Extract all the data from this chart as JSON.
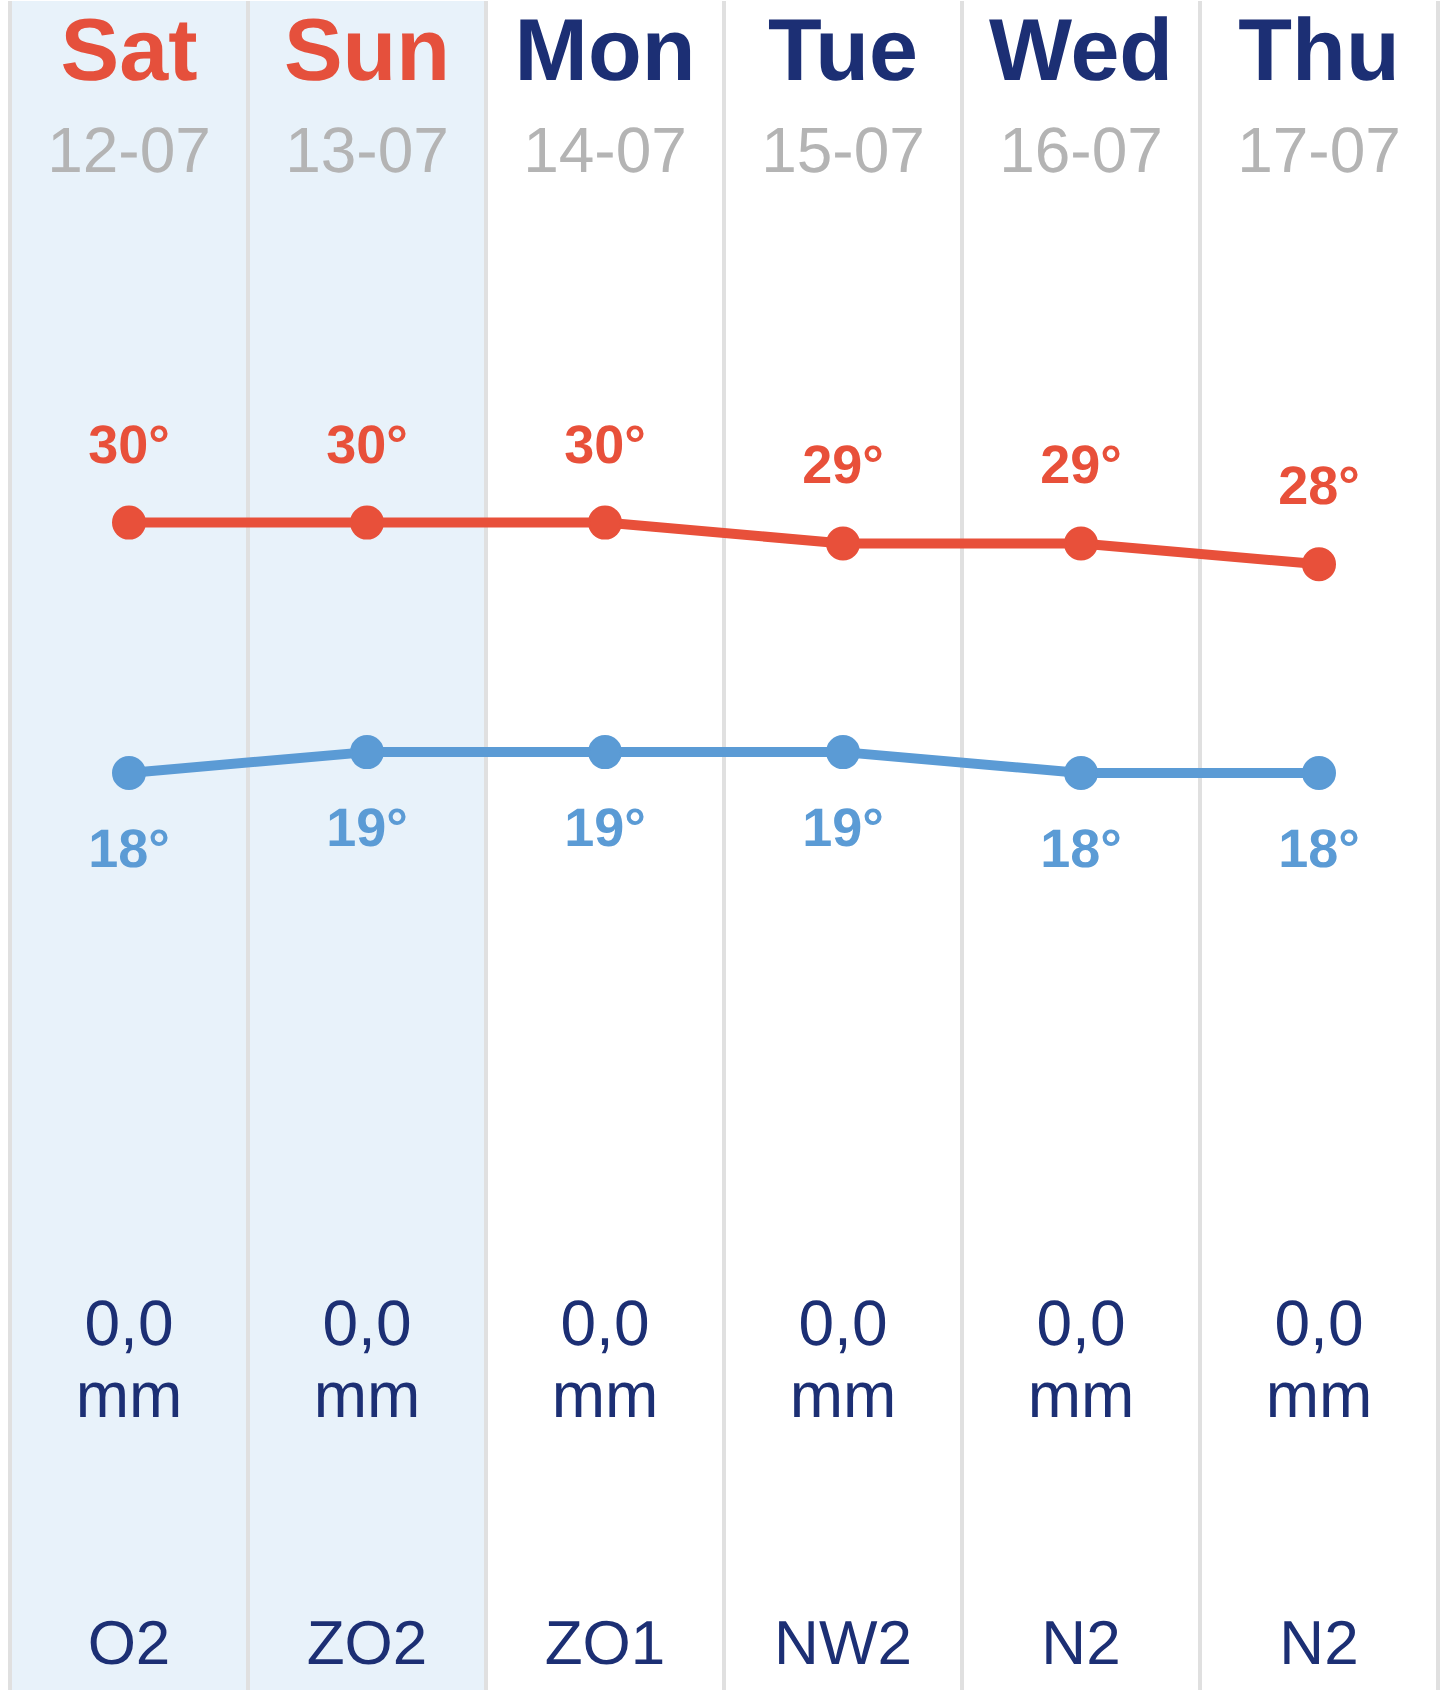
{
  "chart_data": {
    "type": "line",
    "categories": [
      "Sat\n12-07",
      "Sun\n13-07",
      "Mon\n14-07",
      "Tue\n15-07",
      "Wed\n16-07",
      "Thu\n17-07"
    ],
    "series": [
      {
        "color": "#e8503a",
        "values": [
          30,
          30,
          30,
          29,
          29,
          28
        ],
        "value_labels": [
          "30°",
          "30°",
          "30°",
          "29°",
          "29°",
          "28°"
        ]
      },
      {
        "color": "#5b9bd5",
        "values": [
          18,
          19,
          19,
          19,
          18,
          18
        ],
        "value_labels": [
          "18°",
          "19°",
          "19°",
          "19°",
          "18°",
          "18°"
        ]
      }
    ],
    "ylim": [
      -26,
      55
    ],
    "marker": "circle",
    "grid": "x",
    "tick_labels": "x",
    "bands": [
      {
        "axis": "x",
        "from": "Sat\n12-07",
        "to": "Sun\n13-07",
        "color": "#e8f2fa"
      }
    ],
    "annotations": [
      "0,0\nmm",
      "0,0\nmm",
      "0,0\nmm",
      "0,0\nmm",
      "0,0\nmm",
      "0,0\nmm",
      "O2",
      "ZO2",
      "ZO1",
      "NW2",
      "N2",
      "N2"
    ]
  }
}
